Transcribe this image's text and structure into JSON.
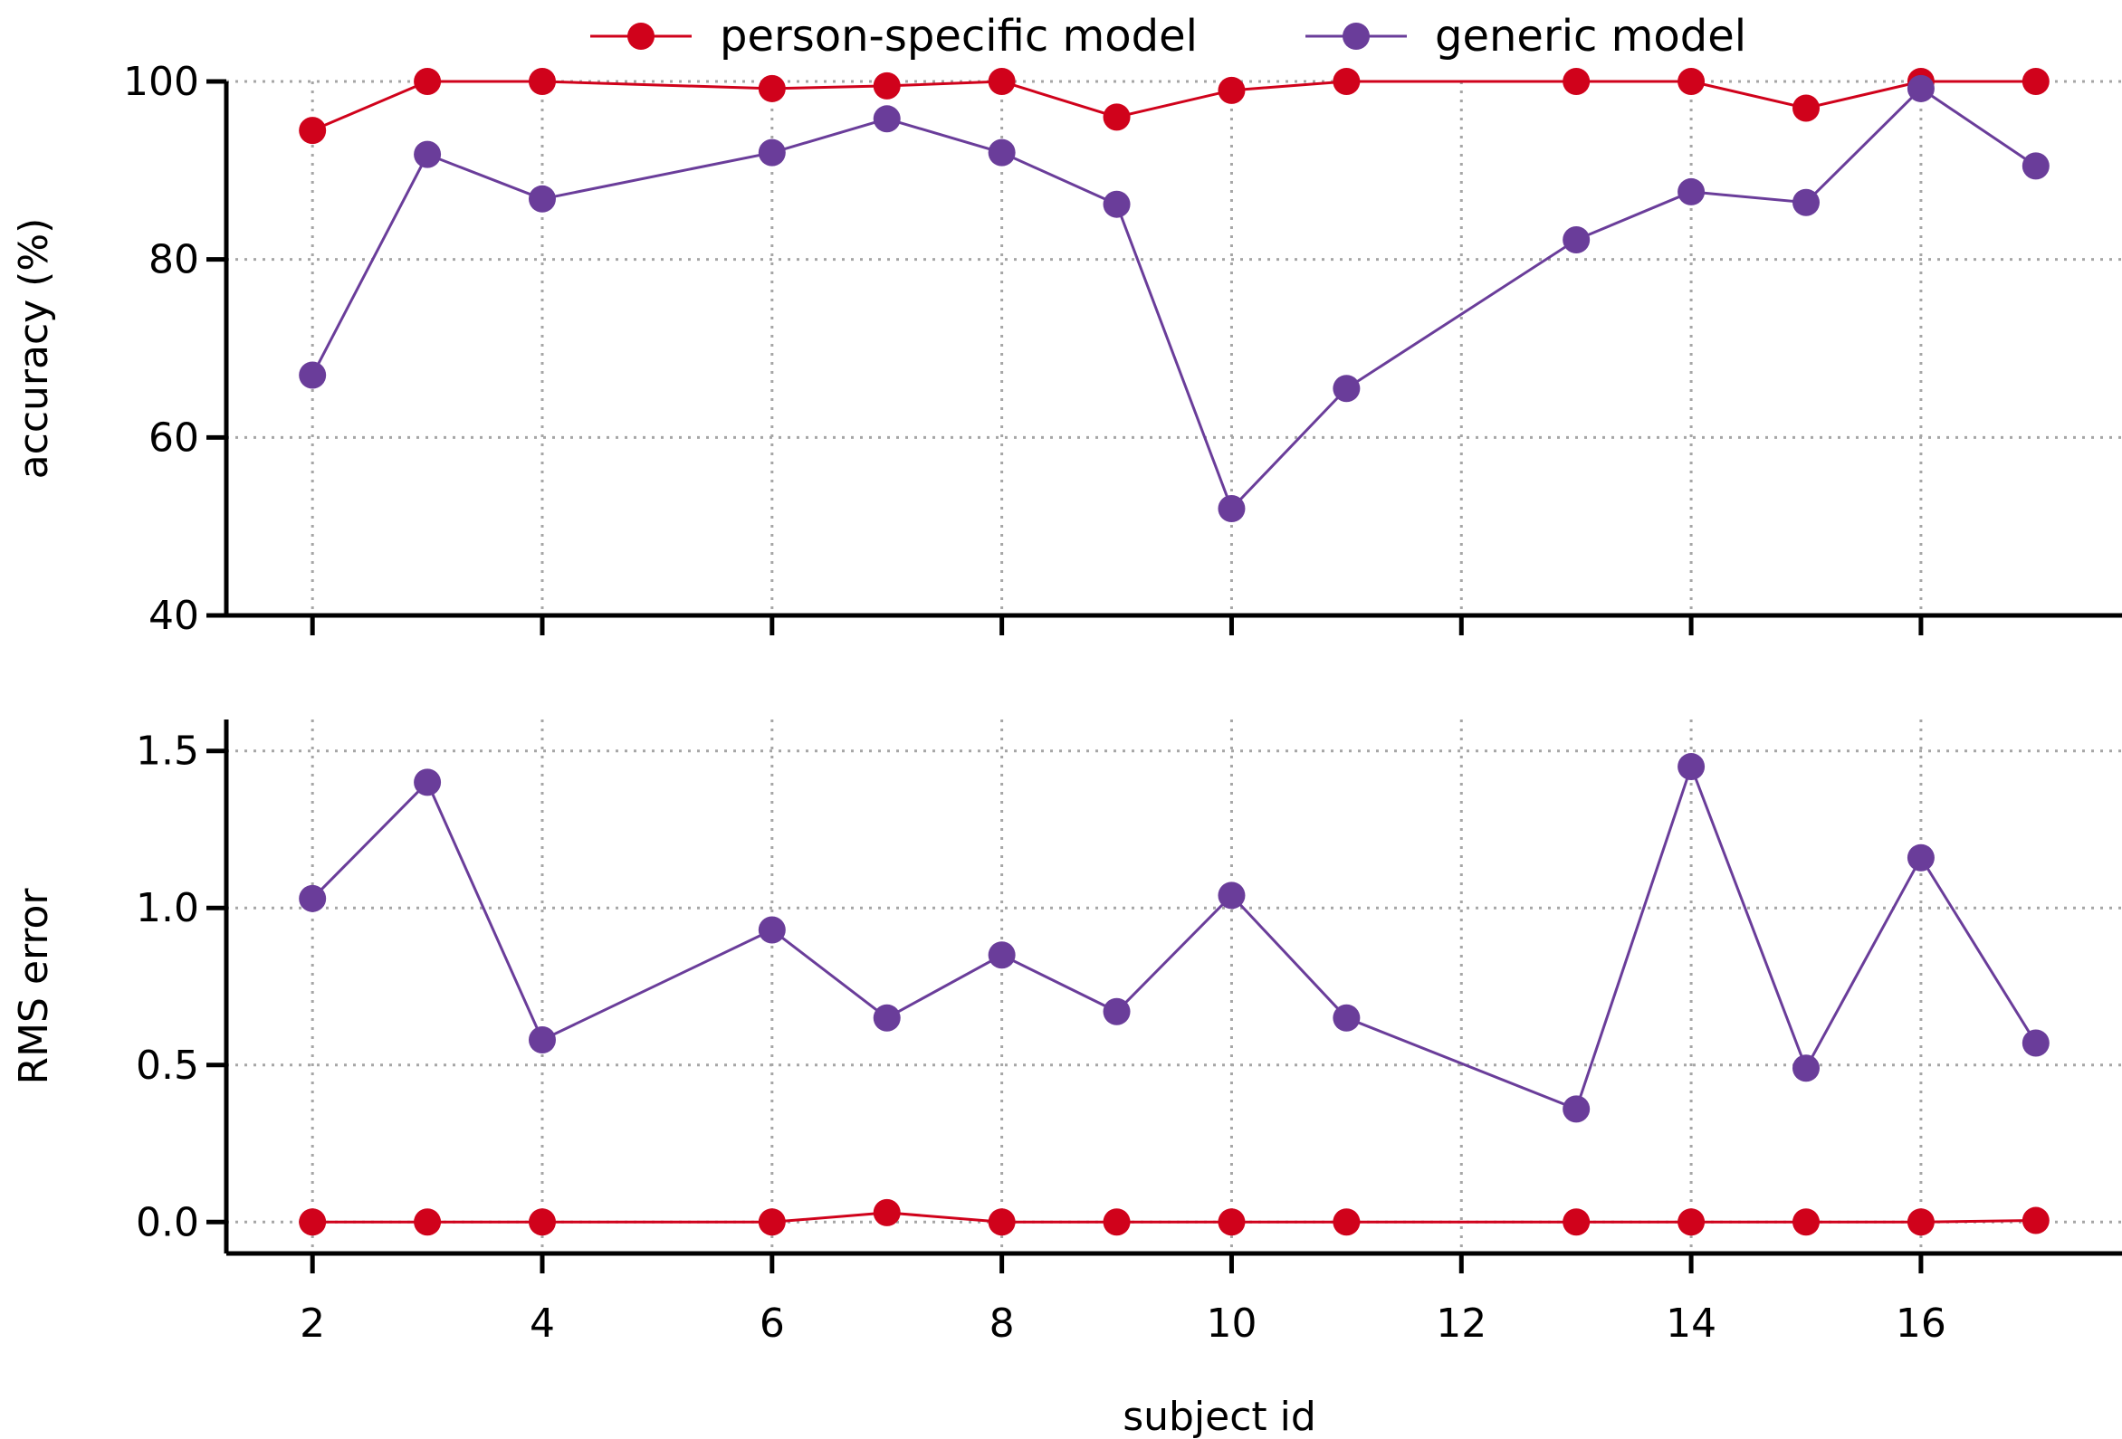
{
  "legend": {
    "placement": "top-center",
    "items": [
      {
        "label": "person-specific model",
        "color": "#d0021b"
      },
      {
        "label": "generic model",
        "color": "#6a3d9a"
      }
    ]
  },
  "chart_data": [
    {
      "type": "line",
      "ylabel": "accuracy (%)",
      "xlabel": "",
      "ylim": [
        40,
        100
      ],
      "yticks": [
        40,
        60,
        80,
        100
      ],
      "xlim": [
        1.25,
        17.75
      ],
      "xticks": [
        2,
        4,
        6,
        8,
        10,
        12,
        14,
        16
      ],
      "x_tick_labels_shown": false,
      "grid": true,
      "x": [
        2,
        3,
        4,
        6,
        7,
        8,
        9,
        10,
        11,
        13,
        14,
        15,
        16,
        17
      ],
      "series": [
        {
          "name": "person-specific model",
          "color": "#d0021b",
          "values": [
            94.5,
            100,
            100,
            99.2,
            99.5,
            100,
            96,
            99,
            100,
            100,
            100,
            97,
            100,
            100
          ]
        },
        {
          "name": "generic model",
          "color": "#6a3d9a",
          "values": [
            67,
            91.8,
            86.8,
            92,
            95.8,
            92,
            86.2,
            52,
            65.5,
            82.2,
            87.6,
            86.4,
            99.2,
            90.5
          ]
        }
      ]
    },
    {
      "type": "line",
      "ylabel": "RMS error",
      "xlabel": "subject id",
      "ylim": [
        -0.1,
        1.6
      ],
      "yticks": [
        "0.0",
        "0.5",
        "1.0",
        "1.5"
      ],
      "xlim": [
        1.25,
        17.75
      ],
      "xticks": [
        2,
        4,
        6,
        8,
        10,
        12,
        14,
        16
      ],
      "x_tick_labels_shown": true,
      "grid": true,
      "x": [
        2,
        3,
        4,
        6,
        7,
        8,
        9,
        10,
        11,
        13,
        14,
        15,
        16,
        17
      ],
      "series": [
        {
          "name": "person-specific model",
          "color": "#d0021b",
          "values": [
            0,
            0,
            0,
            0,
            0.03,
            0,
            0,
            0,
            0,
            0,
            0,
            0,
            0,
            0.005
          ]
        },
        {
          "name": "generic model",
          "color": "#6a3d9a",
          "values": [
            1.03,
            1.4,
            0.58,
            0.93,
            0.65,
            0.85,
            0.67,
            1.04,
            0.65,
            0.36,
            1.45,
            0.49,
            1.16,
            0.57
          ]
        }
      ]
    }
  ]
}
